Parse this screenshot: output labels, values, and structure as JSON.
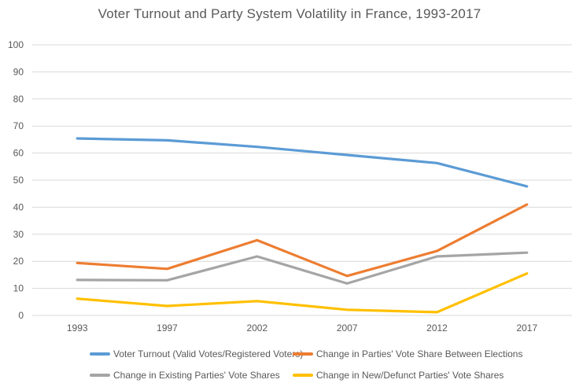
{
  "chart_data": {
    "type": "line",
    "title": "Voter Turnout and Party System Volatility in France, 1993-2017",
    "categories": [
      "1993",
      "1997",
      "2002",
      "2007",
      "2012",
      "2017"
    ],
    "series": [
      {
        "id": "voter-turnout",
        "name": "Voter Turnout (Valid Votes/Registered Voters)",
        "color": "#5B9BD5",
        "values": [
          65.4,
          64.7,
          62.3,
          59.3,
          56.3,
          47.7
        ]
      },
      {
        "id": "total-volatility",
        "name": "Change in Parties' Vote Share Between Elections",
        "color": "#ED7D31",
        "values": [
          19.4,
          17.2,
          27.8,
          14.6,
          23.8,
          41.0
        ]
      },
      {
        "id": "existing-parties-volatility",
        "name": "Change in Existing Parties' Vote Shares",
        "color": "#A5A5A5",
        "values": [
          13.1,
          13.0,
          21.8,
          11.8,
          21.8,
          23.2
        ]
      },
      {
        "id": "new-defunct-parties-volatility",
        "name": "Change in New/Defunct Parties' Vote Shares",
        "color": "#FFC000",
        "values": [
          6.2,
          3.5,
          5.3,
          2.1,
          1.2,
          15.5
        ]
      }
    ],
    "xlabel": "",
    "ylabel": "",
    "ylim": [
      0,
      100
    ],
    "ytick_step": 10,
    "grid": true,
    "grid_color": "#D9D9D9",
    "axis_label_color": "#595959",
    "legend_position": "bottom",
    "line_width": 3.2
  }
}
